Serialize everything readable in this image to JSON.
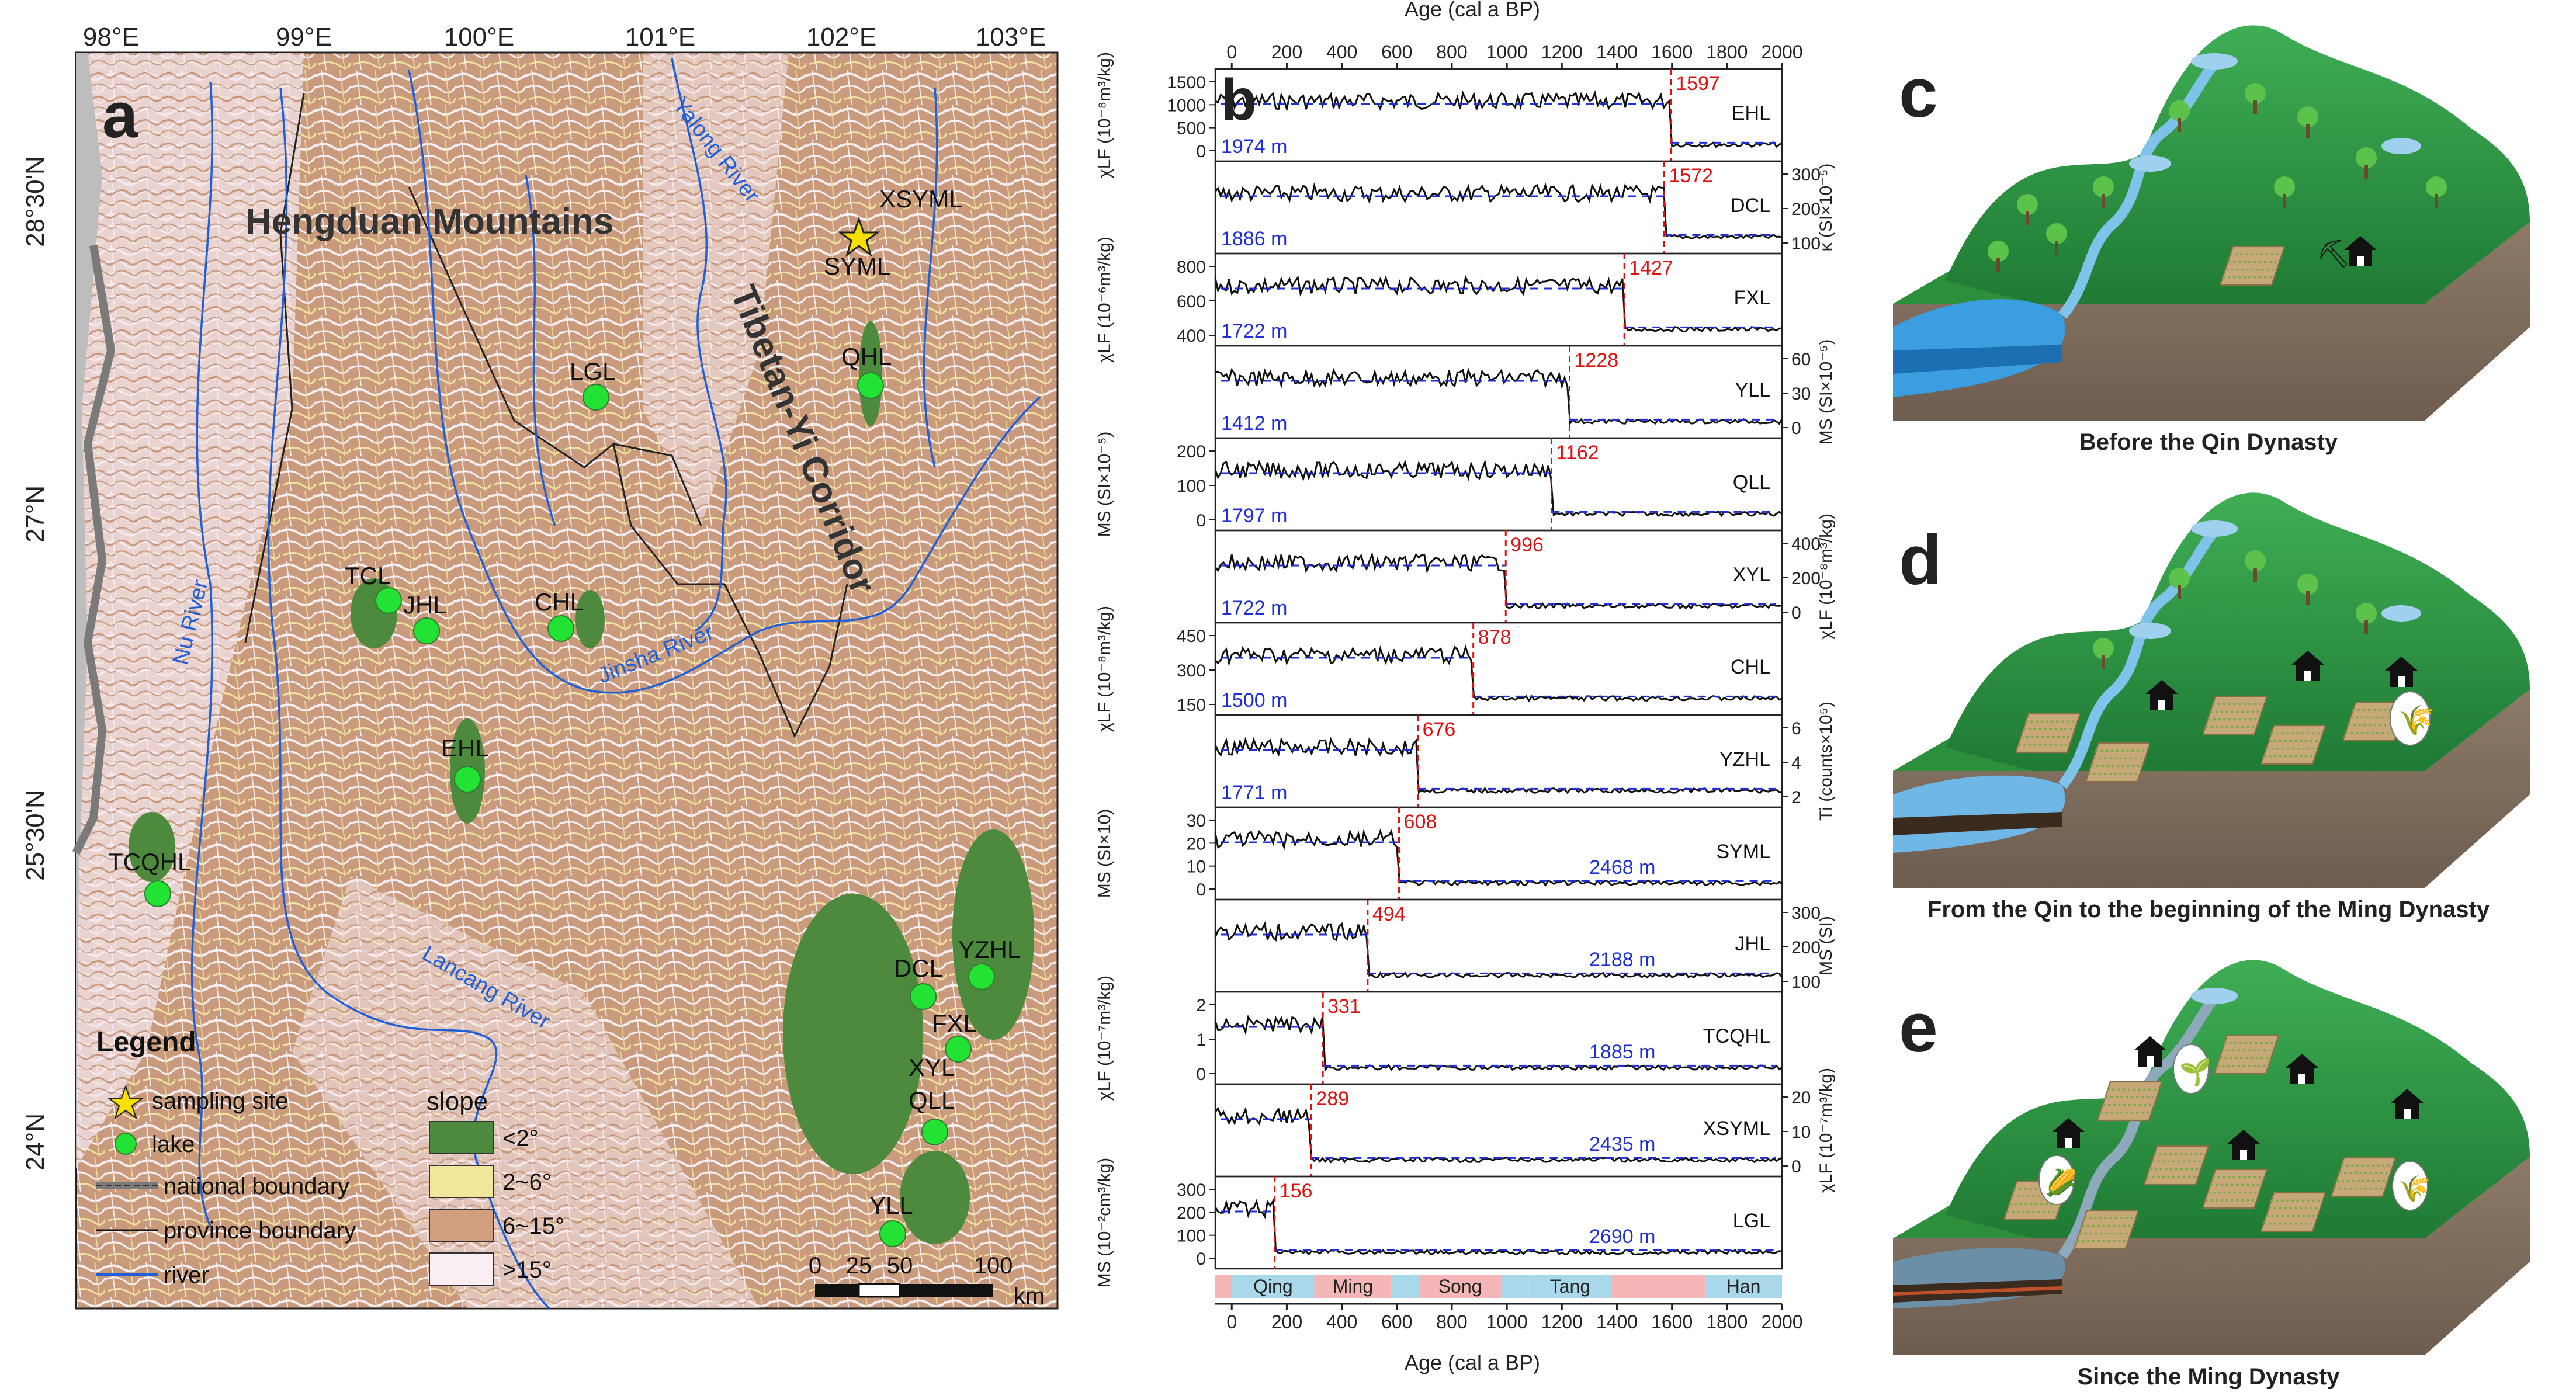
{
  "panel_a": {
    "letter": "a",
    "lon_ticks": [
      "98°E",
      "99°E",
      "100°E",
      "101°E",
      "102°E",
      "103°E"
    ],
    "lat_ticks": [
      "28°30'N",
      "27°N",
      "25°30'N",
      "24°N"
    ],
    "region_labels": {
      "mountains": "Hengduan Mountains",
      "corridor": "Tibetan-Yi Corridor"
    },
    "rivers": [
      "Yalong River",
      "Nu River",
      "Jinsha River",
      "Lancang River"
    ],
    "lakes": [
      "LGL",
      "QHL",
      "TCL",
      "JHL",
      "CHL",
      "EHL",
      "TCQHL",
      "DCL",
      "YZHL",
      "FXL",
      "XYL",
      "QLL",
      "YLL"
    ],
    "sites": [
      "XSYML",
      "SYML"
    ],
    "legend": {
      "title": "Legend",
      "items": [
        "sampling site",
        "lake",
        "national boundary",
        "province boundary",
        "river"
      ],
      "slope_title": "slope",
      "slope_classes": [
        {
          "label": "<2°",
          "color": "#4e8a3e"
        },
        {
          "label": "2~6°",
          "color": "#f1e79b"
        },
        {
          "label": "6~15°",
          "color": "#d19e7f"
        },
        {
          "label": ">15°",
          "color": "#f9eef4"
        }
      ]
    },
    "scale": {
      "ticks": [
        "0",
        "25",
        "50",
        "100"
      ],
      "unit": "km"
    }
  },
  "panel_b": {
    "letter": "b",
    "x_title": "Age (cal a BP)",
    "x_ticks": [
      "0",
      "200",
      "400",
      "600",
      "800",
      "1000",
      "1200",
      "1400",
      "1600",
      "1800",
      "2000"
    ],
    "tracks": [
      {
        "name": "EHL",
        "elev": "1974 m",
        "change": "1597",
        "ticks": [
          "1500",
          "1000",
          "500",
          "0"
        ]
      },
      {
        "name": "DCL",
        "elev": "1886 m",
        "change": "1572",
        "ticks": [
          "300",
          "200",
          "100"
        ]
      },
      {
        "name": "FXL",
        "elev": "1722 m",
        "change": "1427",
        "ticks": [
          "800",
          "600",
          "400"
        ]
      },
      {
        "name": "YLL",
        "elev": "1412 m",
        "change": "1228",
        "ticks": [
          "60",
          "30",
          "0"
        ]
      },
      {
        "name": "QLL",
        "elev": "1797 m",
        "change": "1162",
        "ticks": [
          "200",
          "100",
          "0"
        ]
      },
      {
        "name": "XYL",
        "elev": "1722 m",
        "change": "996",
        "ticks": [
          "400",
          "200",
          "0"
        ]
      },
      {
        "name": "CHL",
        "elev": "1500 m",
        "change": "878",
        "ticks": [
          "450",
          "300",
          "150"
        ]
      },
      {
        "name": "YZHL",
        "elev": "1771 m",
        "change": "676",
        "ticks": [
          "6",
          "4",
          "2"
        ]
      },
      {
        "name": "SYML",
        "elev": "2468 m",
        "change": "608",
        "ticks": [
          "30",
          "20",
          "10",
          "0"
        ]
      },
      {
        "name": "JHL",
        "elev": "2188 m",
        "change": "494",
        "ticks": [
          "300",
          "200",
          "100"
        ]
      },
      {
        "name": "TCQHL",
        "elev": "1885 m",
        "change": "331",
        "ticks": [
          "2",
          "1",
          "0"
        ]
      },
      {
        "name": "XSYML",
        "elev": "2435 m",
        "change": "289",
        "ticks": [
          "20",
          "10",
          "0"
        ]
      },
      {
        "name": "LGL",
        "elev": "2690 m",
        "change": "156",
        "ticks": [
          "300",
          "200",
          "100",
          "0"
        ]
      }
    ],
    "axis_labels": {
      "ehl": "χLF (10⁻⁸m³/kg)",
      "dcl": "κ (SI×10⁻⁵)",
      "fxl": "χLF (10⁻⁶m³/kg)",
      "yll": "MS (SI×10⁻⁵)",
      "qll": "MS (SI×10⁻⁵)",
      "xyl": "χLF (10⁻⁸m³/kg)",
      "chl": "χLF (10⁻⁸m³/kg)",
      "yzhl": "Ti (counts×10⁵)",
      "syml": "MS (SI×10)",
      "jhl": "MS (SI)",
      "tcqhl": "χLF (10⁻⁷m³/kg)",
      "xsyml": "χLF (10⁻⁷m³/kg)",
      "lgl": "MS (10⁻²cm³/kg)"
    },
    "dynasties": [
      {
        "name": "Qing",
        "color": "#a8d8ea"
      },
      {
        "name": "Ming",
        "color": "#f4b6b6"
      },
      {
        "name": "Song",
        "color": "#f4b6b6"
      },
      {
        "name": "Tang",
        "color": "#a8d8ea"
      },
      {
        "name": "Han",
        "color": "#a8d8ea"
      }
    ]
  },
  "panel_c": {
    "letter": "c",
    "caption": "Before the Qin Dynasty"
  },
  "panel_d": {
    "letter": "d",
    "caption": "From the Qin to the beginning of the Ming Dynasty"
  },
  "panel_e": {
    "letter": "e",
    "caption": "Since the Ming Dynasty"
  }
}
